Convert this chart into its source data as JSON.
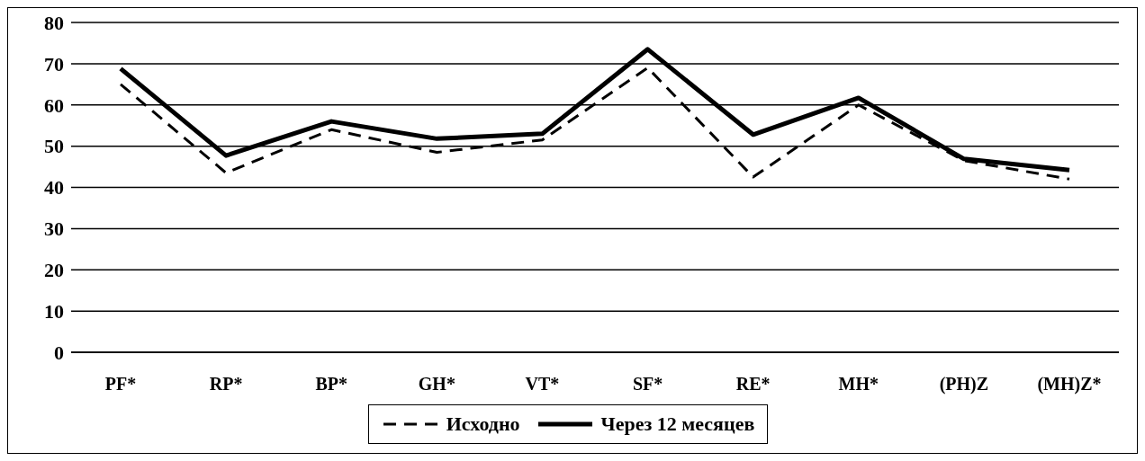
{
  "chart_data": {
    "type": "line",
    "categories": [
      "PF*",
      "RP*",
      "BP*",
      "GH*",
      "VT*",
      "SF*",
      "RE*",
      "MH*",
      "(PH)Z",
      "(MH)Z*"
    ],
    "series": [
      {
        "name": "Исходно",
        "color": "#000000",
        "line_style": "dashed",
        "values": [
          65,
          43.5,
          54,
          48.5,
          51.5,
          69,
          42.5,
          60,
          46.5,
          42
        ]
      },
      {
        "name": "Через 12 месяцев",
        "color": "#000000",
        "line_style": "solid",
        "values": [
          68.8,
          47.7,
          56,
          51.8,
          53,
          73.5,
          52.8,
          61.7,
          46.9,
          44.2
        ]
      }
    ],
    "ylim": [
      0,
      80
    ],
    "yticks": [
      0,
      10,
      20,
      30,
      40,
      50,
      60,
      70,
      80
    ],
    "grid": "y",
    "legend": "bottom",
    "marker": "none"
  }
}
